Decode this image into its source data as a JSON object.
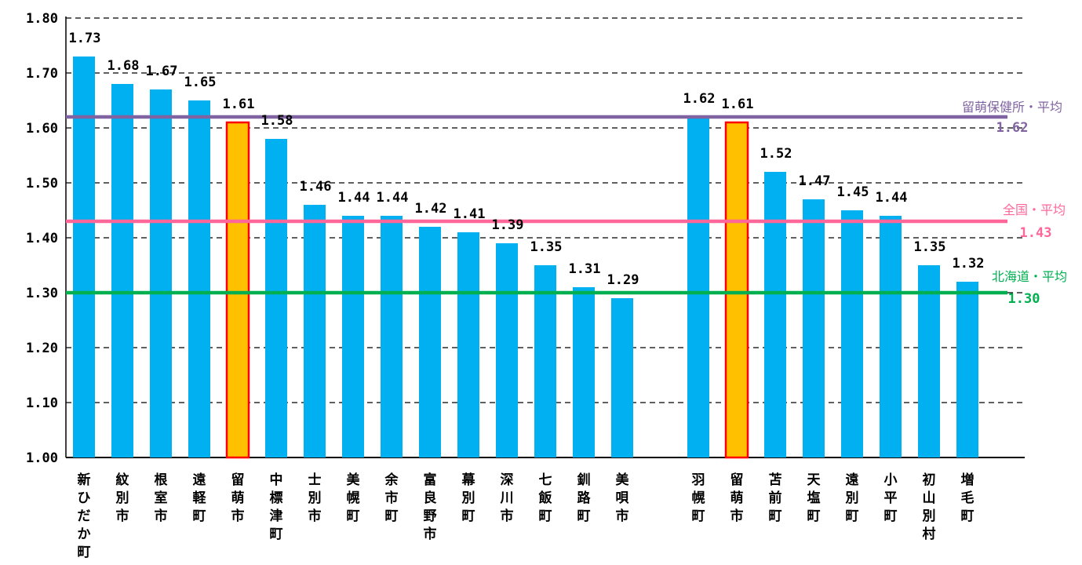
{
  "chart_data": {
    "type": "bar",
    "ylim": [
      1.0,
      1.8
    ],
    "yticks": [
      "1.00",
      "1.10",
      "1.20",
      "1.30",
      "1.40",
      "1.50",
      "1.60",
      "1.70",
      "1.80"
    ],
    "grid": true,
    "bar_color": "#00b0f0",
    "highlight_color": "#ffc000",
    "highlight_border": "#ff0000",
    "groups": [
      {
        "bars": [
          {
            "category": "新ひだか町",
            "value": 1.73,
            "label": "1.73",
            "highlight": false
          },
          {
            "category": "紋別市",
            "value": 1.68,
            "label": "1.68",
            "highlight": false
          },
          {
            "category": "根室市",
            "value": 1.67,
            "label": "1.67",
            "highlight": false
          },
          {
            "category": "遠軽町",
            "value": 1.65,
            "label": "1.65",
            "highlight": false
          },
          {
            "category": "留萌市",
            "value": 1.61,
            "label": "1.61",
            "highlight": true
          },
          {
            "category": "中標津町",
            "value": 1.58,
            "label": "1.58",
            "highlight": false
          },
          {
            "category": "士別市",
            "value": 1.46,
            "label": "1.46",
            "highlight": false
          },
          {
            "category": "美幌町",
            "value": 1.44,
            "label": "1.44",
            "highlight": false
          },
          {
            "category": "余市町",
            "value": 1.44,
            "label": "1.44",
            "highlight": false
          },
          {
            "category": "富良野市",
            "value": 1.42,
            "label": "1.42",
            "highlight": false
          },
          {
            "category": "幕別町",
            "value": 1.41,
            "label": "1.41",
            "highlight": false
          },
          {
            "category": "深川市",
            "value": 1.39,
            "label": "1.39",
            "highlight": false
          },
          {
            "category": "七飯町",
            "value": 1.35,
            "label": "1.35",
            "highlight": false
          },
          {
            "category": "釧路町",
            "value": 1.31,
            "label": "1.31",
            "highlight": false
          },
          {
            "category": "美唄市",
            "value": 1.29,
            "label": "1.29",
            "highlight": false
          }
        ]
      },
      {
        "bars": [
          {
            "category": "羽幌町",
            "value": 1.62,
            "label": "1.62",
            "highlight": false
          },
          {
            "category": "留萌市",
            "value": 1.61,
            "label": "1.61",
            "highlight": true
          },
          {
            "category": "苫前町",
            "value": 1.52,
            "label": "1.52",
            "highlight": false
          },
          {
            "category": "天塩町",
            "value": 1.47,
            "label": "1.47",
            "highlight": false
          },
          {
            "category": "遠別町",
            "value": 1.45,
            "label": "1.45",
            "highlight": false
          },
          {
            "category": "小平町",
            "value": 1.44,
            "label": "1.44",
            "highlight": false
          },
          {
            "category": "初山別村",
            "value": 1.35,
            "label": "1.35",
            "highlight": false
          },
          {
            "category": "増毛町",
            "value": 1.32,
            "label": "1.32",
            "highlight": false
          }
        ]
      }
    ],
    "reference_lines": [
      {
        "name": "留萌保健所・平均",
        "value": 1.62,
        "label": "1.62",
        "color": "#8064a2"
      },
      {
        "name": "全国・平均",
        "value": 1.43,
        "label": "1.43",
        "color": "#ff6699"
      },
      {
        "name": "北海道・平均",
        "value": 1.3,
        "label": "1.30",
        "color": "#00b050"
      }
    ]
  }
}
